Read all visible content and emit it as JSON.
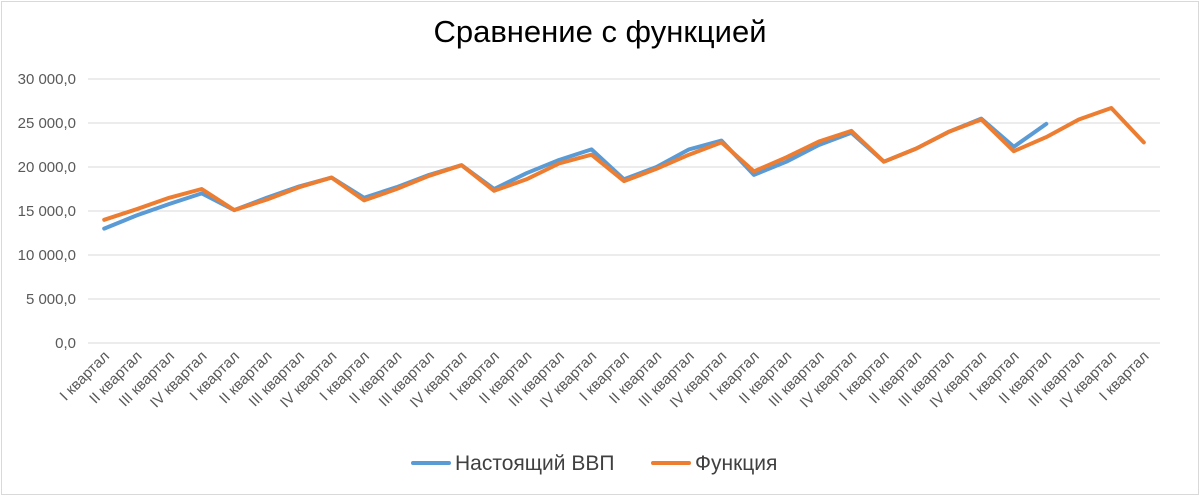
{
  "chart_data": {
    "type": "line",
    "title": "Сравнение с функцией",
    "xlabel": "",
    "ylabel": "",
    "ylim": [
      0,
      30000
    ],
    "yticks": [
      "0,0",
      "5 000,0",
      "10 000,0",
      "15 000,0",
      "20 000,0",
      "25 000,0",
      "30 000,0"
    ],
    "grid": true,
    "legend_position": "bottom",
    "categories": [
      "I квартал",
      "II квартал",
      "III квартал",
      "IV квартал",
      "I квартал",
      "II квартал",
      "III квартал",
      "IV квартал",
      "I квартал",
      "II квартал",
      "III квартал",
      "IV квартал",
      "I квартал",
      "II квартал",
      "III квартал",
      "IV квартал",
      "I квартал",
      "II квартал",
      "III квартал",
      "IV квартал",
      "I квартал",
      "II квартал",
      "III квартал",
      "IV квартал",
      "I квартал",
      "II квартал",
      "III квартал",
      "IV квартал",
      "I квартал",
      "II квартал",
      "III квартал",
      "IV квартал",
      "I квартал"
    ],
    "series": [
      {
        "name": "Настоящий ВВП",
        "color": "#5b9bd5",
        "values": [
          13000,
          14500,
          15800,
          17000,
          15100,
          16500,
          17800,
          18800,
          16500,
          17700,
          19100,
          20200,
          17500,
          19300,
          20800,
          22000,
          18600,
          20000,
          22000,
          23000,
          19100,
          20600,
          22500,
          23900,
          20600,
          22100,
          24000,
          25500,
          22300,
          24900,
          null,
          null,
          null
        ]
      },
      {
        "name": "Функция",
        "color": "#ed7d31",
        "values": [
          14000,
          15200,
          16500,
          17500,
          15100,
          16300,
          17700,
          18800,
          16200,
          17500,
          19000,
          20200,
          17300,
          18600,
          20400,
          21400,
          18400,
          19800,
          21400,
          22800,
          19500,
          21100,
          22900,
          24100,
          20600,
          22100,
          24000,
          25400,
          21800,
          23400,
          25400,
          26700,
          22800
        ]
      }
    ]
  }
}
